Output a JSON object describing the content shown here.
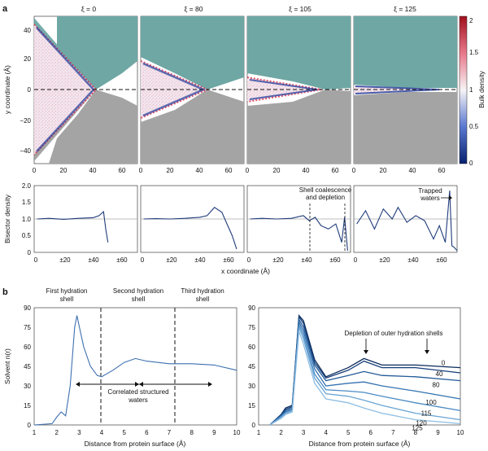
{
  "panel_a": {
    "label": "a",
    "columns": [
      {
        "xi": "ξ = 0"
      },
      {
        "xi": "ξ = 80"
      },
      {
        "xi": "ξ = 105"
      },
      {
        "xi": "ξ = 125"
      }
    ],
    "map_ylabel": "y coordinate (Å)",
    "map_yticks": [
      "40",
      "20",
      "0",
      "−20",
      "−40"
    ],
    "map_xticks": [
      "0",
      "20",
      "40",
      "60"
    ],
    "colorbar": {
      "label": "Bulk density",
      "ticks": [
        "2",
        "1.5",
        "1",
        "0.5",
        "0"
      ],
      "color_high": "#b2182b",
      "color_mid": "#f7f7f7",
      "color_low": "#1f3b99"
    },
    "bis_ylabel": "Bisector density",
    "bis_yticks": [
      "2.0",
      "1.5",
      "1.0",
      "0.5",
      "0"
    ],
    "bis_xticks": [
      "0",
      "±20",
      "±40",
      "±60"
    ],
    "bis_xlabel": "x coordinate (Å)",
    "ann_shell_1": "Shell coalescence",
    "ann_shell_2": "and depletion",
    "ann_trapped_1": "Trapped",
    "ann_trapped_2": "waters"
  },
  "panel_b": {
    "label": "b",
    "header_first_1": "First hydration",
    "header_first_2": "shell",
    "header_second_1": "Second hydration",
    "header_second_2": "shell",
    "header_third_1": "Third hydration",
    "header_third_2": "shell",
    "ylabel": "Solvent n(r)",
    "yticks": [
      "90",
      "75",
      "60",
      "45",
      "30",
      "15",
      "0"
    ],
    "xticks": [
      "1",
      "2",
      "3",
      "4",
      "5",
      "6",
      "7",
      "8",
      "9",
      "10"
    ],
    "xlabel": "Distance from protein surface (Å)",
    "ann_corr_1": "Correlated structured",
    "ann_corr_2": "waters",
    "ann_depletion": "Depletion of outer hydration shells",
    "curve_labels": [
      "0",
      "40",
      "80",
      "100",
      "115",
      "120",
      "125"
    ]
  },
  "chart_data": [
    {
      "type": "line",
      "title": "Bisector density, ξ = 0",
      "xlabel": "x coordinate (Å)",
      "ylabel": "Bisector density",
      "ylim": [
        0,
        2
      ],
      "xlim": [
        0,
        70
      ],
      "x": [
        2,
        10,
        20,
        30,
        40,
        44,
        47,
        48.5,
        50
      ],
      "values": [
        1.0,
        1.02,
        0.99,
        1.02,
        1.04,
        1.1,
        1.22,
        0.7,
        0.3
      ]
    },
    {
      "type": "line",
      "title": "Bisector density, ξ = 80",
      "xlabel": "x coordinate (Å)",
      "ylabel": "Bisector density",
      "ylim": [
        0,
        2
      ],
      "xlim": [
        0,
        70
      ],
      "x": [
        2,
        10,
        20,
        30,
        40,
        45,
        50,
        55,
        58,
        62,
        65
      ],
      "values": [
        1.0,
        1.01,
        1.0,
        1.02,
        1.05,
        1.1,
        1.35,
        1.2,
        0.9,
        0.5,
        0.1
      ]
    },
    {
      "type": "line",
      "title": "Bisector density, ξ = 105",
      "xlabel": "x coordinate (Å)",
      "ylabel": "Bisector density",
      "ylim": [
        0,
        2
      ],
      "xlim": [
        0,
        70
      ],
      "x": [
        2,
        10,
        20,
        30,
        38,
        42,
        46,
        50,
        55,
        60,
        64,
        66,
        68
      ],
      "values": [
        1.0,
        1.02,
        1.0,
        1.02,
        1.1,
        0.95,
        1.05,
        0.8,
        0.7,
        0.85,
        0.3,
        1.05,
        0.05
      ]
    },
    {
      "type": "line",
      "title": "Bisector density, ξ = 125",
      "xlabel": "x coordinate (Å)",
      "ylabel": "Bisector density",
      "ylim": [
        0,
        2
      ],
      "xlim": [
        0,
        70
      ],
      "x": [
        2,
        8,
        14,
        20,
        26,
        30,
        36,
        42,
        48,
        54,
        58,
        62,
        65,
        66.5,
        68,
        70
      ],
      "values": [
        0.85,
        1.25,
        0.7,
        1.3,
        1.0,
        1.35,
        0.9,
        1.1,
        0.95,
        0.4,
        0.8,
        0.3,
        1.85,
        0.2,
        0.15,
        0.05
      ]
    },
    {
      "type": "line",
      "title": "Solvent n(r) vs distance",
      "xlabel": "Distance from protein surface (Å)",
      "ylabel": "Solvent n(r)",
      "ylim": [
        0,
        90
      ],
      "xlim": [
        1,
        10
      ],
      "x": [
        1.0,
        1.8,
        2.0,
        2.2,
        2.4,
        2.6,
        2.8,
        2.9,
        3.0,
        3.2,
        3.5,
        3.8,
        4.0,
        4.5,
        5.0,
        5.5,
        6.0,
        7.0,
        8.0,
        9.0,
        10.0
      ],
      "values": [
        0,
        1,
        6,
        10,
        7,
        30,
        75,
        84,
        76,
        60,
        45,
        38,
        37,
        42,
        48,
        51,
        49,
        47,
        47,
        46,
        42
      ]
    },
    {
      "type": "line",
      "title": "Solvent n(r) by ξ",
      "xlabel": "Distance from protein surface (Å)",
      "ylabel": "Solvent n(r)",
      "ylim": [
        0,
        90
      ],
      "xlim": [
        1,
        10
      ],
      "x": [
        1.5,
        2.0,
        2.2,
        2.5,
        2.8,
        3.0,
        3.5,
        4.0,
        5.0,
        5.7,
        6.5,
        8.0,
        10.0
      ],
      "series": [
        {
          "name": "0",
          "values": [
            0,
            8,
            13,
            15,
            84,
            80,
            50,
            37,
            44,
            51,
            46,
            46,
            44
          ]
        },
        {
          "name": "40",
          "values": [
            0,
            8,
            12,
            14,
            83,
            78,
            48,
            36,
            42,
            49,
            44,
            44,
            40
          ]
        },
        {
          "name": "80",
          "values": [
            0,
            7,
            11,
            13,
            81,
            75,
            46,
            34,
            38,
            41,
            38,
            37,
            34
          ]
        },
        {
          "name": "100",
          "values": [
            0,
            7,
            10,
            12,
            79,
            72,
            43,
            30,
            32,
            33,
            30,
            26,
            20
          ]
        },
        {
          "name": "115",
          "values": [
            0,
            6,
            9,
            11,
            77,
            69,
            39,
            27,
            26,
            25,
            22,
            17,
            11
          ]
        },
        {
          "name": "120",
          "values": [
            0,
            6,
            9,
            11,
            75,
            66,
            36,
            24,
            22,
            19,
            15,
            9,
            4
          ]
        },
        {
          "name": "125",
          "values": [
            0,
            5,
            8,
            10,
            72,
            62,
            32,
            20,
            17,
            13,
            9,
            4,
            1
          ]
        }
      ]
    }
  ]
}
